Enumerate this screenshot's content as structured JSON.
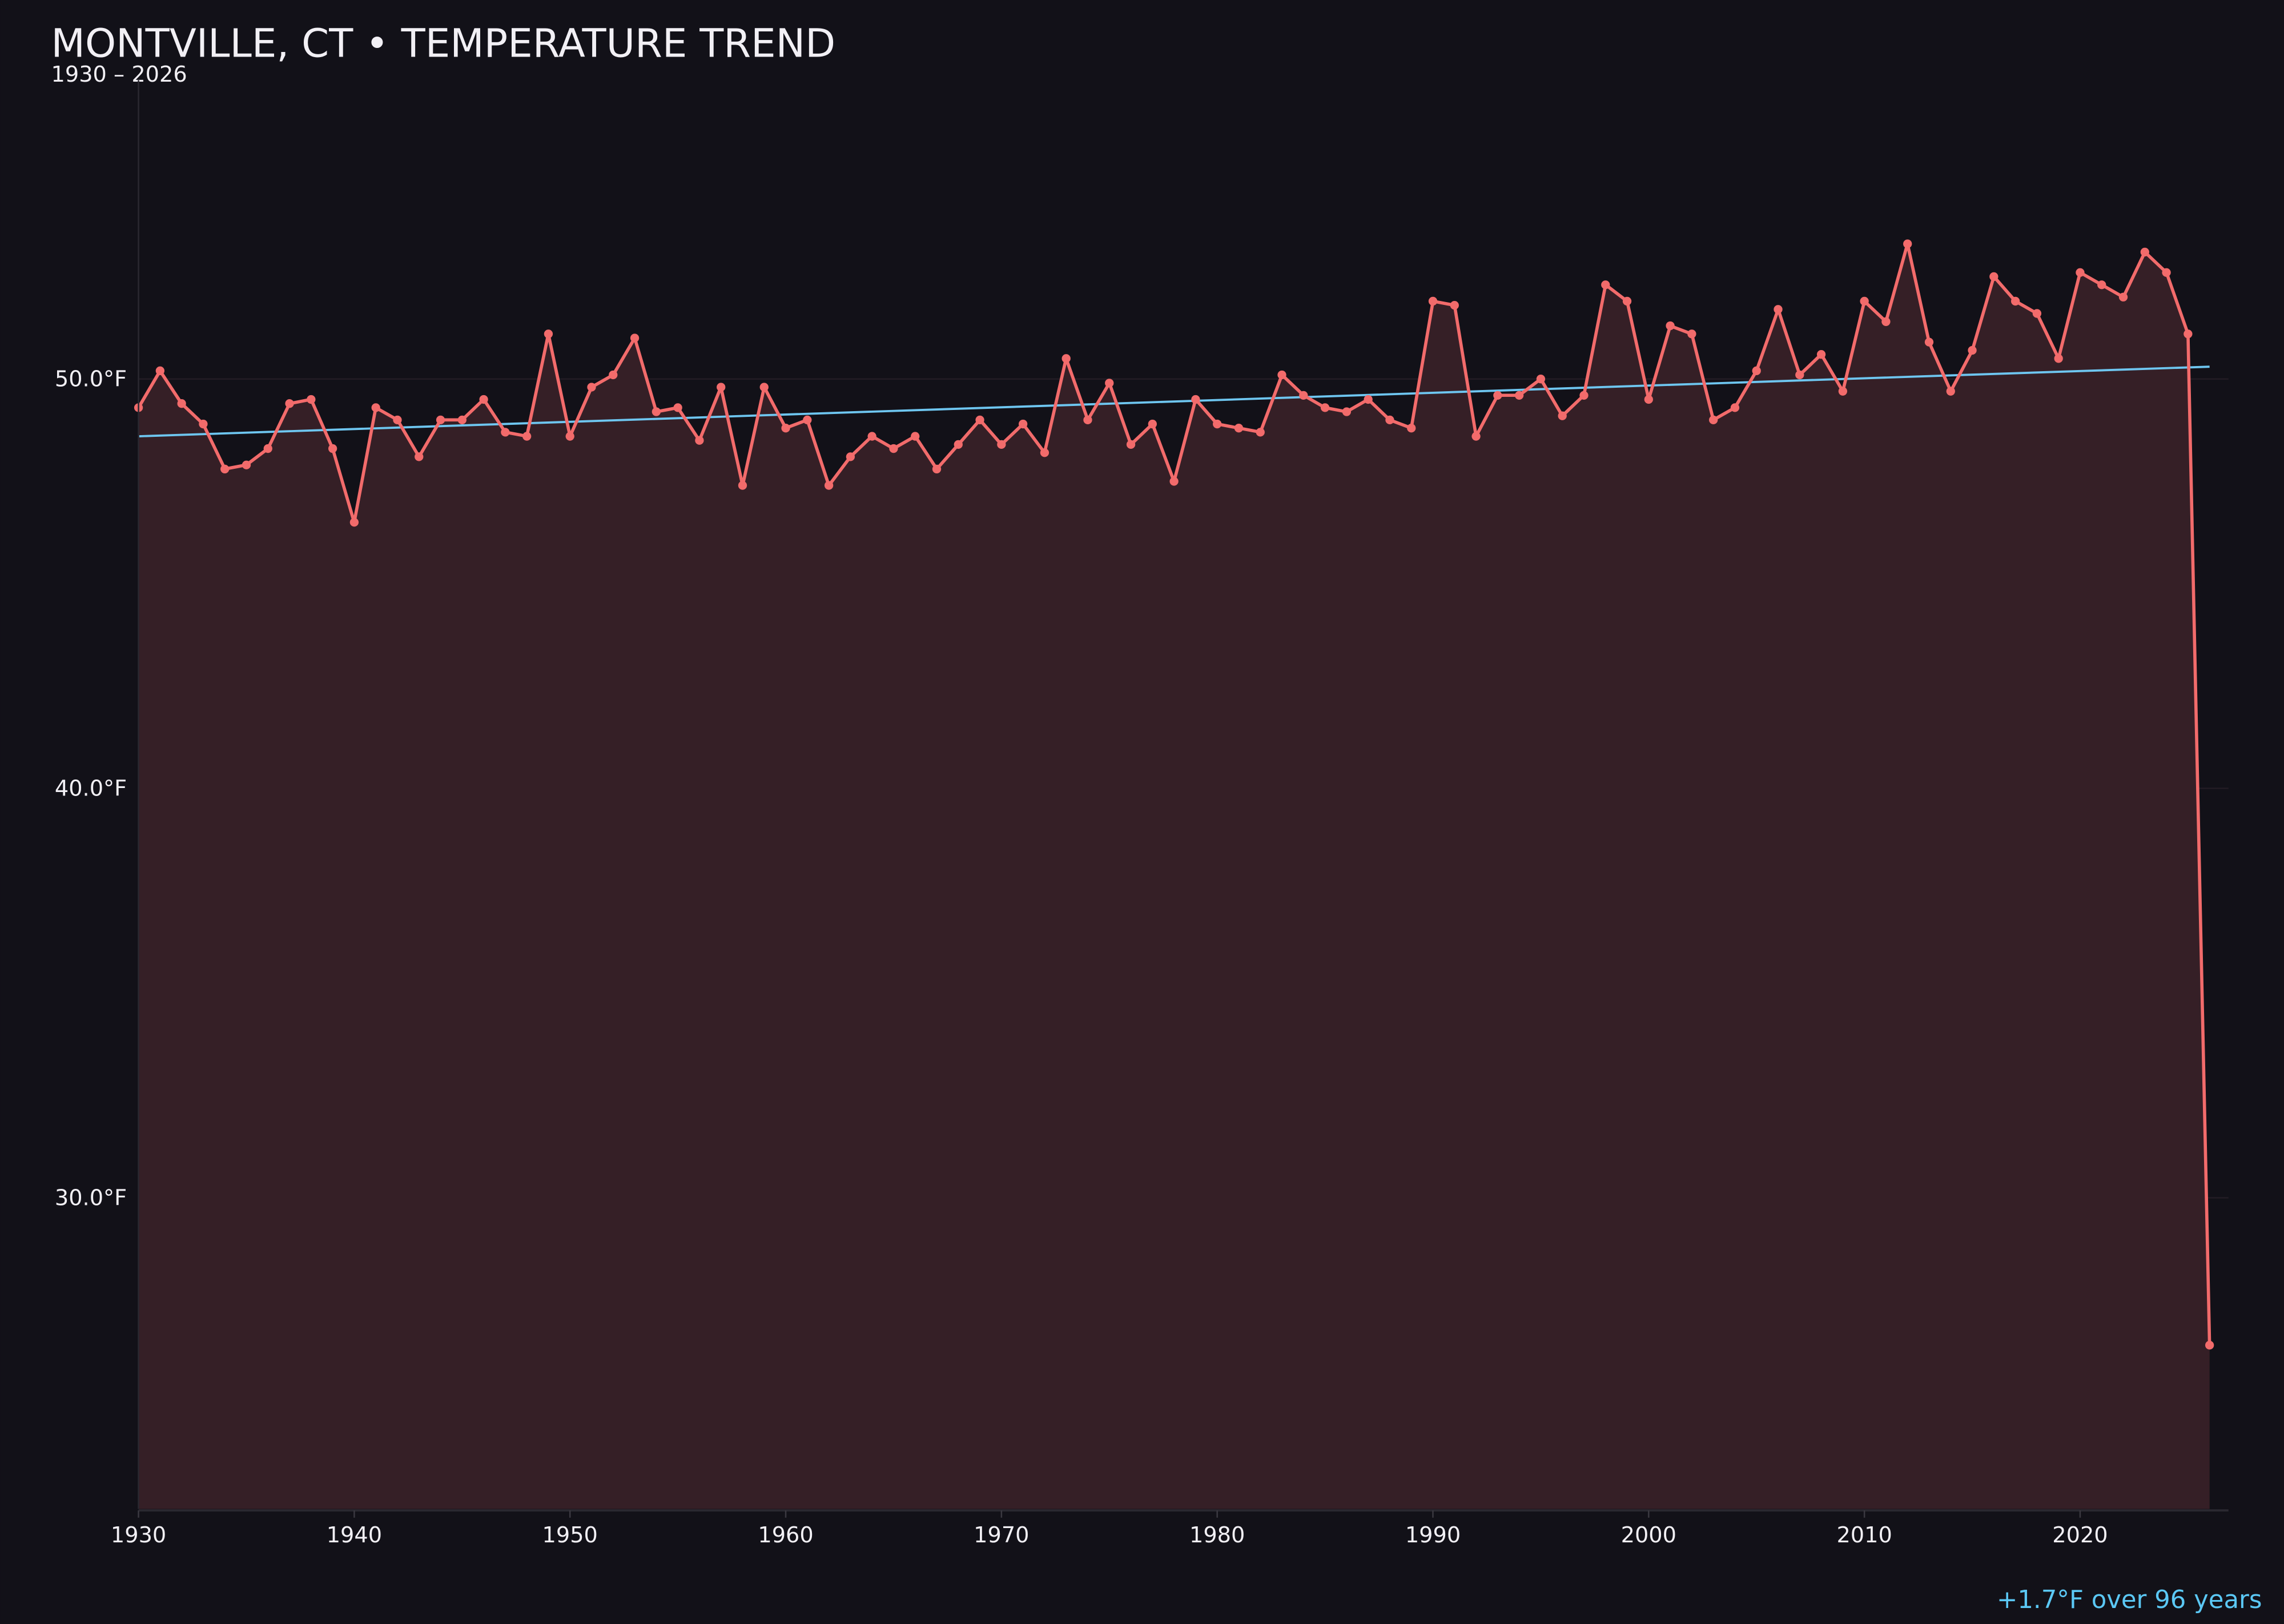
{
  "chart_data": {
    "type": "line",
    "title": "MONTVILLE, CT • TEMPERATURE TREND",
    "subtitle": "1930 – 2026",
    "xlabel": "",
    "ylabel": "",
    "xlim": [
      1930,
      2026
    ],
    "ylim": [
      22.4,
      57.3
    ],
    "x_ticks": [
      1930,
      1940,
      1950,
      1960,
      1970,
      1980,
      1990,
      2000,
      2010,
      2020
    ],
    "x_tick_labels": [
      "1930",
      "1940",
      "1950",
      "1960",
      "1970",
      "1980",
      "1990",
      "2000",
      "2010",
      "2020"
    ],
    "y_ticks": [
      30,
      40,
      50
    ],
    "y_tick_labels": [
      "30.0°F",
      "40.0°F",
      "50.0°F"
    ],
    "grid": true,
    "start_year": 1930,
    "values": [
      49.3,
      50.2,
      49.4,
      48.9,
      47.8,
      47.9,
      48.3,
      49.4,
      49.5,
      48.3,
      46.5,
      49.3,
      49.0,
      48.1,
      49.0,
      49.0,
      49.5,
      48.7,
      48.6,
      51.1,
      48.6,
      49.8,
      50.1,
      51.0,
      49.2,
      49.3,
      48.5,
      49.8,
      47.4,
      49.8,
      48.8,
      49.0,
      47.4,
      48.1,
      48.6,
      48.3,
      48.6,
      47.8,
      48.4,
      49.0,
      48.4,
      48.9,
      48.2,
      50.5,
      49.0,
      49.9,
      48.4,
      48.9,
      47.5,
      49.5,
      48.9,
      48.8,
      48.7,
      50.1,
      49.6,
      49.3,
      49.2,
      49.5,
      49.0,
      48.8,
      51.9,
      51.8,
      48.6,
      49.6,
      49.6,
      50.0,
      49.1,
      49.6,
      52.3,
      51.9,
      49.5,
      51.3,
      51.1,
      49.0,
      49.3,
      50.2,
      51.7,
      50.1,
      50.6,
      49.7,
      51.9,
      51.4,
      53.3,
      50.9,
      49.7,
      50.7,
      52.5,
      51.9,
      51.6,
      50.5,
      52.6,
      52.3,
      52.0,
      53.1,
      52.6,
      51.1,
      26.4
    ],
    "trend": {
      "x": [
        1930,
        2026
      ],
      "y": [
        48.6,
        50.3
      ]
    },
    "annotation": "+1.7°F over 96 years",
    "colors": {
      "background": "#121118",
      "series": "#f26b6b",
      "fill": "#351f26",
      "trend": "#6ec6f0",
      "annotation": "#5bc8f5",
      "text": "#f2f0f5",
      "grid": "#221c24"
    }
  }
}
